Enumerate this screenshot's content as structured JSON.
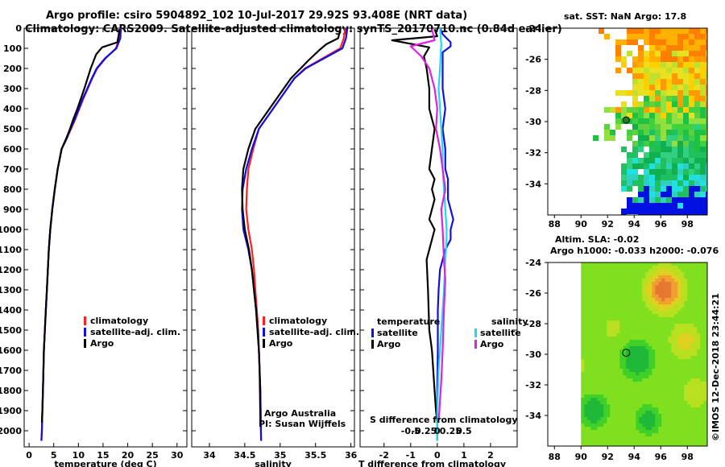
{
  "header": {
    "title_line1": "Argo profile: csiro 5904892_102 10-Jul-2017 29.92S 93.408E (NRT data)",
    "title_line2": "Climatology: CARS2009. Satellite-adjusted climatology: synTS_20170710.nc (0.84d earlier)"
  },
  "colors": {
    "climatology": "#ff2020",
    "satellite": "#1010e0",
    "argo": "#000000",
    "satellite_s": "#20d8f0",
    "argo_s": "#e020e0"
  },
  "chart_data": [
    {
      "id": "temperature",
      "type": "line",
      "xlabel": "temperature (deg C)",
      "ylabel": "",
      "xlim": [
        -1,
        32
      ],
      "ylim": [
        2080,
        0
      ],
      "xticks": [
        0,
        5,
        10,
        15,
        20,
        25,
        30
      ],
      "xtick_labels": [
        "0",
        "5",
        "10",
        "15",
        "20",
        "25",
        "30"
      ],
      "yticks": [
        0,
        100,
        200,
        300,
        400,
        500,
        600,
        700,
        800,
        900,
        1000,
        1100,
        1200,
        1300,
        1400,
        1500,
        1600,
        1700,
        1800,
        1900,
        2000
      ],
      "ytick_labels": [
        "0",
        "100",
        "200",
        "300",
        "400",
        "500",
        "600",
        "700",
        "800",
        "900",
        "1000",
        "1100",
        "1200",
        "1300",
        "1400",
        "1500",
        "1600",
        "1700",
        "1800",
        "1900",
        "2000"
      ],
      "legend": {
        "position": "center-right",
        "entries": [
          {
            "label": "climatology",
            "series": "climatology"
          },
          {
            "label": "satellite-adj. clim.",
            "series": "satellite"
          },
          {
            "label": "Argo",
            "series": "argo"
          }
        ]
      },
      "series": [
        {
          "name": "climatology",
          "color_key": "climatology",
          "x": [
            18.4,
            18.3,
            17.6,
            15.5,
            13.8,
            12.8,
            11.9,
            11,
            10.2,
            9.4,
            8.5,
            7.6,
            6.6,
            5.8,
            5.2,
            4.7,
            4.3,
            4.0,
            3.8,
            3.6,
            3.4,
            3.2,
            3.0,
            2.9,
            2.8,
            2.7,
            2.6,
            2.5
          ],
          "y": [
            0,
            50,
            100,
            150,
            200,
            250,
            300,
            350,
            400,
            450,
            500,
            550,
            600,
            700,
            800,
            900,
            1000,
            1100,
            1200,
            1300,
            1400,
            1500,
            1600,
            1700,
            1800,
            1900,
            2000,
            2050
          ]
        },
        {
          "name": "satellite-adj. clim.",
          "color_key": "satellite",
          "x": [
            18.6,
            18.5,
            17.7,
            15.4,
            13.7,
            12.7,
            11.8,
            10.9,
            10.1,
            9.3,
            8.4,
            7.6,
            6.6,
            5.8,
            5.2,
            4.7,
            4.3,
            4.0,
            3.8,
            3.6,
            3.4,
            3.2,
            3.0,
            2.9,
            2.8,
            2.7,
            2.6,
            2.5
          ],
          "y": [
            0,
            50,
            100,
            150,
            200,
            250,
            300,
            350,
            400,
            450,
            500,
            550,
            600,
            700,
            800,
            900,
            1000,
            1100,
            1200,
            1300,
            1400,
            1500,
            1600,
            1700,
            1800,
            1900,
            2000,
            2050
          ]
        },
        {
          "name": "Argo",
          "color_key": "argo",
          "x": [
            18.3,
            18.2,
            17.9,
            14.8,
            13.6,
            12.5,
            11.2,
            10.5,
            9.8,
            9.0,
            8.3,
            7.5,
            6.6,
            5.8,
            5.2,
            4.7,
            4.3,
            4.0,
            3.8,
            3.6,
            3.4,
            3.2,
            3.0,
            2.9,
            2.8,
            2.7,
            2.6
          ],
          "y": [
            5,
            30,
            70,
            95,
            130,
            200,
            300,
            350,
            400,
            450,
            500,
            550,
            600,
            700,
            800,
            900,
            1000,
            1100,
            1200,
            1300,
            1400,
            1500,
            1600,
            1700,
            1800,
            1900,
            1960
          ]
        }
      ]
    },
    {
      "id": "salinity",
      "type": "line",
      "xlabel": "salinity",
      "ylabel": "",
      "xlim": [
        33.75,
        36.05
      ],
      "ylim": [
        2080,
        0
      ],
      "xticks": [
        34,
        34.5,
        35,
        35.5,
        36
      ],
      "xtick_labels": [
        "34",
        "34.5",
        "35",
        "35.5",
        "36"
      ],
      "legend": {
        "position": "center-right",
        "entries": [
          {
            "label": "climatology",
            "series": "climatology"
          },
          {
            "label": "satellite-adj. clim.",
            "series": "satellite"
          },
          {
            "label": "Argo",
            "series": "argo"
          }
        ]
      },
      "annotations": [
        "Argo Australia",
        "PI: Susan Wijffels"
      ],
      "series": [
        {
          "name": "climatology",
          "color_key": "climatology",
          "x": [
            35.92,
            35.9,
            35.85,
            35.6,
            35.35,
            35.2,
            35.1,
            35.0,
            34.9,
            34.8,
            34.7,
            34.62,
            34.55,
            34.53,
            34.52,
            34.55,
            34.6,
            34.63,
            34.65,
            34.67,
            34.69,
            34.7,
            34.71,
            34.72,
            34.73
          ],
          "y": [
            0,
            50,
            100,
            150,
            200,
            250,
            300,
            350,
            400,
            450,
            500,
            600,
            700,
            800,
            900,
            1000,
            1100,
            1200,
            1300,
            1400,
            1500,
            1600,
            1700,
            1800,
            2050
          ]
        },
        {
          "name": "satellite-adj. clim.",
          "color_key": "satellite",
          "x": [
            35.95,
            35.93,
            35.88,
            35.62,
            35.36,
            35.2,
            35.1,
            35.0,
            34.9,
            34.8,
            34.7,
            34.6,
            34.52,
            34.47,
            34.46,
            34.48,
            34.55,
            34.6,
            34.63,
            34.66,
            34.68,
            34.7,
            34.71,
            34.72,
            34.73
          ],
          "y": [
            0,
            50,
            100,
            150,
            200,
            250,
            300,
            350,
            400,
            450,
            500,
            600,
            700,
            800,
            900,
            1000,
            1100,
            1200,
            1300,
            1400,
            1500,
            1600,
            1700,
            1800,
            2050
          ]
        },
        {
          "name": "Argo",
          "color_key": "argo",
          "x": [
            35.85,
            35.82,
            35.65,
            35.55,
            35.4,
            35.15,
            35.05,
            34.95,
            34.85,
            34.75,
            34.65,
            34.55,
            34.48,
            34.46,
            34.47,
            34.5,
            34.56,
            34.6,
            34.63,
            34.66,
            34.68,
            34.7,
            34.71,
            34.72
          ],
          "y": [
            5,
            50,
            80,
            110,
            160,
            250,
            300,
            350,
            400,
            450,
            500,
            600,
            700,
            800,
            900,
            1000,
            1100,
            1200,
            1300,
            1400,
            1500,
            1600,
            1700,
            1960
          ]
        }
      ]
    },
    {
      "id": "difference",
      "type": "line",
      "xlabel": "T difference from climatology",
      "top_label": "S difference from climatology",
      "xlim": [
        -2.9,
        3.0
      ],
      "ylim": [
        2080,
        0
      ],
      "xticks": [
        -2,
        -1,
        0,
        1,
        2
      ],
      "xtick_labels": [
        "-2",
        "-1",
        "0",
        "1",
        "2"
      ],
      "top_xticks": [
        -1,
        -0.5,
        0,
        0.5,
        1
      ],
      "top_xtick_labels": [
        "-0.5",
        "-0.25",
        "0",
        "0.25",
        "0.5"
      ],
      "legend": {
        "position": "lower",
        "groups": [
          {
            "title": "temperature",
            "entries": [
              {
                "label": "satellite",
                "series": "satellite"
              },
              {
                "label": "Argo",
                "series": "argo"
              }
            ]
          },
          {
            "title": "salinity",
            "entries": [
              {
                "label": "satellite",
                "series": "satellite_s"
              },
              {
                "label": "Argo",
                "series": "argo_s"
              }
            ]
          }
        ]
      },
      "series": [
        {
          "name": "T satellite",
          "color_key": "satellite",
          "x": [
            0.1,
            0.2,
            0.5,
            0.5,
            0.2,
            0.2,
            0.2,
            0.3,
            0.2,
            0.3,
            0.3,
            0.4,
            0.4,
            0.4,
            0.5,
            0.6,
            0.5,
            0.5,
            0.3,
            0.1,
            0.05,
            0.02,
            0.02,
            0,
            0,
            0
          ],
          "y": [
            0,
            30,
            70,
            90,
            120,
            200,
            300,
            400,
            500,
            600,
            700,
            750,
            800,
            850,
            900,
            950,
            1000,
            1050,
            1100,
            1200,
            1300,
            1400,
            1600,
            1800,
            1950,
            2050
          ]
        },
        {
          "name": "T Argo",
          "color_key": "argo",
          "x": [
            -0.1,
            0.0,
            -1.7,
            -0.3,
            -0.5,
            -0.4,
            -0.3,
            -0.3,
            -0.1,
            -0.2,
            -0.3,
            -0.1,
            -0.2,
            -0.1,
            -0.2,
            -0.3,
            -0.1,
            -0.2,
            -0.4,
            -0.35,
            -0.3,
            -0.2,
            -0.1,
            -0.05,
            0
          ],
          "y": [
            5,
            40,
            60,
            95,
            140,
            200,
            300,
            400,
            500,
            600,
            700,
            750,
            800,
            850,
            900,
            950,
            1000,
            1050,
            1150,
            1300,
            1500,
            1600,
            1800,
            1900,
            1960
          ]
        },
        {
          "name": "S satellite",
          "color_key": "satellite_s",
          "x": [
            0.1,
            0.15,
            0.1,
            0.05,
            0.1,
            0.15,
            0.2,
            0.2,
            0.25,
            0.3,
            0.35,
            0.35,
            0.3,
            0.25,
            0.15,
            0.05,
            0,
            0
          ],
          "y": [
            0,
            80,
            200,
            300,
            400,
            500,
            600,
            700,
            800,
            900,
            1000,
            1050,
            1150,
            1300,
            1500,
            1700,
            1900,
            2050
          ]
        },
        {
          "name": "S Argo",
          "color_key": "argo_s",
          "x": [
            -0.2,
            -0.1,
            -1.0,
            -0.6,
            -0.3,
            -0.1,
            0.0,
            -0.05,
            0.1,
            0.2,
            0.3,
            0.15,
            0.2,
            0.25,
            0.3,
            0.25,
            0.2,
            0.15,
            0.1,
            0.05
          ],
          "y": [
            5,
            60,
            90,
            140,
            200,
            300,
            400,
            500,
            600,
            700,
            800,
            900,
            1000,
            1150,
            1250,
            1400,
            1600,
            1750,
            1850,
            1960
          ]
        }
      ]
    },
    {
      "id": "sst_map",
      "type": "heatmap",
      "title": "sat. SST: NaN Argo: 17.8",
      "xlim": [
        87.5,
        99.5
      ],
      "ylim": [
        -36,
        -24
      ],
      "xticks": [
        88,
        90,
        92,
        94,
        96,
        98
      ],
      "xtick_labels": [
        "88",
        "90",
        "92",
        "94",
        "96",
        "98"
      ],
      "yticks": [
        -24,
        -26,
        -28,
        -30,
        -32,
        -34
      ],
      "ytick_labels": [
        "-24",
        "-26",
        "-28",
        "-30",
        "-32",
        "-34"
      ],
      "marker": {
        "lon": 93.4,
        "lat": -29.9
      }
    },
    {
      "id": "sla_map",
      "type": "heatmap",
      "title": "Altim. SLA: -0.02",
      "subtitle": "Argo h1000: -0.033 h2000: -0.076",
      "xlim": [
        87.5,
        99.5
      ],
      "ylim": [
        -36,
        -24
      ],
      "xticks": [
        88,
        90,
        92,
        94,
        96,
        98
      ],
      "xtick_labels": [
        "88",
        "90",
        "92",
        "94",
        "96",
        "98"
      ],
      "yticks": [
        -24,
        -26,
        -28,
        -30,
        -32,
        -34
      ],
      "ytick_labels": [
        "-24",
        "-26",
        "-28",
        "-30",
        "-32",
        "-34"
      ],
      "marker": {
        "lon": 93.4,
        "lat": -29.9
      }
    }
  ],
  "footer": {
    "credit": "©IMOS 12-Dec-2018 23:44:21"
  }
}
